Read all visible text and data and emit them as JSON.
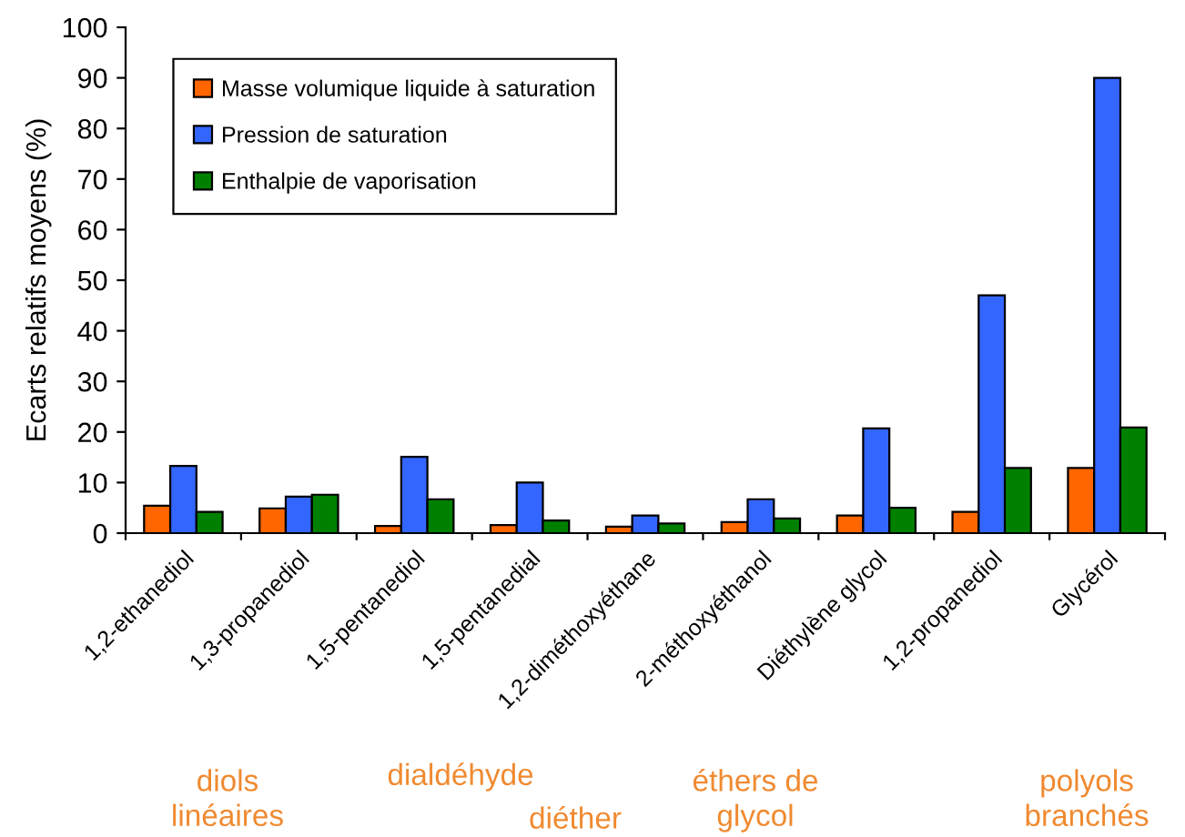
{
  "chart_data": {
    "type": "bar",
    "ylabel": "Ecarts relatifs moyens (%)",
    "categories": [
      "1,2-ethanediol",
      "1,3-propanediol",
      "1,5-pentanediol",
      "1,5-pentanedial",
      "1,2-diméthoxyéthane",
      "2-méthoxyéthanol",
      "Diéthylène glycol",
      "1,2-propanediol",
      "Glycérol"
    ],
    "series": [
      {
        "name": "Masse volumique liquide à saturation",
        "color": "#ff6600",
        "values": [
          5.4,
          4.9,
          1.4,
          1.6,
          1.3,
          2.2,
          3.5,
          4.2,
          12.9
        ]
      },
      {
        "name": "Pression de saturation",
        "color": "#3366ff",
        "values": [
          13.3,
          7.2,
          15.1,
          10.0,
          3.5,
          6.7,
          20.7,
          47.0,
          90.0
        ]
      },
      {
        "name": "Enthalpie de vaporisation",
        "color": "#008000",
        "values": [
          4.2,
          7.6,
          6.7,
          2.5,
          1.9,
          2.9,
          5.0,
          12.9,
          20.9
        ]
      }
    ],
    "ylim": [
      0,
      100
    ],
    "yticks": [
      0,
      10,
      20,
      30,
      40,
      50,
      60,
      70,
      80,
      90,
      100
    ],
    "grid": false,
    "legend": "top left",
    "annotations": [
      "diols\nlinéaires",
      "dialdéhyde",
      "diéther",
      "éthers de\nglycol",
      "polyols\nbranchés"
    ]
  }
}
